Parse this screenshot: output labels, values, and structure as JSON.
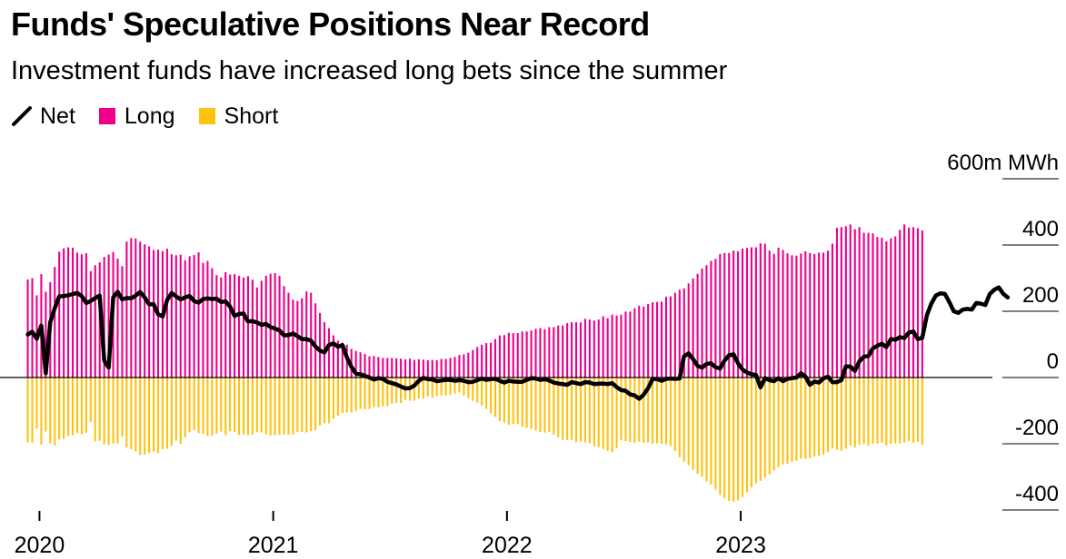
{
  "chart_data": {
    "type": "bar",
    "title": "Funds' Speculative Positions Near Record",
    "subtitle": "Investment funds have increased long bets since the summer",
    "unit_label": "600m MWh",
    "ylim": [
      -450,
      600
    ],
    "y_ticks": [
      {
        "value": 600,
        "label": "600m MWh"
      },
      {
        "value": 400,
        "label": "400"
      },
      {
        "value": 200,
        "label": "200"
      },
      {
        "value": 0,
        "label": "0"
      },
      {
        "value": -200,
        "label": "-200"
      },
      {
        "value": -400,
        "label": "-400"
      }
    ],
    "x_ticks": [
      {
        "year": 2020,
        "label": "2020"
      },
      {
        "year": 2021,
        "label": "2021"
      },
      {
        "year": 2022,
        "label": "2022"
      },
      {
        "year": 2023,
        "label": "2023"
      }
    ],
    "x_range": [
      2019.94,
      2023.96
    ],
    "legend": [
      {
        "key": "net",
        "label": "Net",
        "type": "line",
        "color": "#000000"
      },
      {
        "key": "long",
        "label": "Long",
        "type": "bar",
        "color": "#ec008c"
      },
      {
        "key": "short",
        "label": "Short",
        "type": "bar",
        "color": "#ffc20e"
      }
    ],
    "weeks_per_year": 52,
    "x_start": 2019.95,
    "series": [
      {
        "name": "Long",
        "values": [
          296,
          300,
          248,
          312,
          259,
          288,
          334,
          380,
          390,
          393,
          392,
          377,
          372,
          375,
          321,
          339,
          348,
          364,
          371,
          379,
          359,
          336,
          410,
          421,
          420,
          410,
          402,
          396,
          385,
          386,
          382,
          389,
          372,
          369,
          371,
          354,
          366,
          370,
          378,
          346,
          352,
          330,
          309,
          302,
          318,
          311,
          312,
          307,
          302,
          306,
          295,
          272,
          292,
          307,
          313,
          315,
          307,
          276,
          256,
          235,
          231,
          239,
          260,
          256,
          224,
          195,
          167,
          149,
          127,
          111,
          105,
          99,
          86,
          80,
          76,
          71,
          64,
          65,
          62,
          59,
          59,
          59,
          58,
          57,
          55,
          57,
          53,
          55,
          54,
          52,
          53,
          52,
          56,
          56,
          59,
          62,
          68,
          70,
          75,
          83,
          92,
          99,
          104,
          105,
          116,
          127,
          128,
          135,
          134,
          134,
          139,
          139,
          142,
          147,
          149,
          146,
          152,
          152,
          157,
          157,
          164,
          167,
          167,
          166,
          177,
          175,
          172,
          175,
          185,
          179,
          190,
          187,
          190,
          199,
          199,
          209,
          217,
          214,
          222,
          227,
          228,
          229,
          244,
          245,
          256,
          265,
          269,
          284,
          299,
          313,
          329,
          339,
          352,
          358,
          373,
          376,
          376,
          383,
          381,
          389,
          391,
          393,
          393,
          405,
          404,
          383,
          373,
          392,
          385,
          375,
          369,
          368,
          374,
          381,
          376,
          373,
          377,
          377,
          383,
          404,
          452,
          454,
          457,
          462,
          448,
          454,
          437,
          437,
          435,
          424,
          422,
          411,
          420,
          426,
          446,
          462,
          453,
          454,
          451,
          444
        ]
      },
      {
        "name": "Short",
        "values": [
          -196,
          -197,
          -154,
          -203,
          -163,
          -199,
          -205,
          -187,
          -186,
          -177,
          -174,
          -168,
          -171,
          -167,
          -134,
          -193,
          -191,
          -202,
          -203,
          -200,
          -199,
          -179,
          -211,
          -217,
          -223,
          -234,
          -233,
          -228,
          -224,
          -228,
          -216,
          -215,
          -206,
          -191,
          -200,
          -180,
          -165,
          -159,
          -168,
          -170,
          -176,
          -175,
          -169,
          -163,
          -174,
          -162,
          -164,
          -173,
          -172,
          -174,
          -172,
          -165,
          -166,
          -171,
          -175,
          -175,
          -173,
          -172,
          -172,
          -172,
          -164,
          -164,
          -166,
          -162,
          -160,
          -145,
          -138,
          -138,
          -124,
          -116,
          -107,
          -106,
          -105,
          -101,
          -95,
          -96,
          -95,
          -89,
          -90,
          -87,
          -87,
          -79,
          -76,
          -77,
          -67,
          -70,
          -70,
          -63,
          -64,
          -57,
          -61,
          -56,
          -54,
          -54,
          -53,
          -49,
          -45,
          -54,
          -62,
          -70,
          -76,
          -85,
          -95,
          -107,
          -119,
          -132,
          -136,
          -143,
          -141,
          -140,
          -149,
          -152,
          -156,
          -160,
          -165,
          -166,
          -164,
          -172,
          -180,
          -188,
          -189,
          -188,
          -195,
          -193,
          -196,
          -199,
          -207,
          -210,
          -216,
          -221,
          -225,
          -214,
          -190,
          -192,
          -195,
          -197,
          -194,
          -197,
          -196,
          -200,
          -199,
          -200,
          -202,
          -207,
          -222,
          -241,
          -254,
          -265,
          -279,
          -291,
          -300,
          -314,
          -323,
          -338,
          -355,
          -365,
          -373,
          -375,
          -371,
          -361,
          -347,
          -332,
          -319,
          -312,
          -302,
          -293,
          -281,
          -271,
          -262,
          -261,
          -254,
          -251,
          -245,
          -245,
          -244,
          -238,
          -237,
          -233,
          -225,
          -214,
          -218,
          -221,
          -215,
          -206,
          -211,
          -203,
          -201,
          -205,
          -200,
          -199,
          -197,
          -205,
          -200,
          -199,
          -199,
          -196,
          -192,
          -197,
          -194,
          -203
        ]
      },
      {
        "name": "Net",
        "values": [
          130,
          138,
          117,
          157,
          13,
          167,
          210,
          245,
          246,
          248,
          252,
          255,
          246,
          225,
          231,
          240,
          247,
          51,
          30,
          242,
          259,
          236,
          240,
          239,
          247,
          258,
          242,
          221,
          221,
          191,
          184,
          234,
          255,
          245,
          236,
          242,
          246,
          231,
          226,
          237,
          239,
          237,
          238,
          228,
          230,
          214,
          186,
          192,
          193,
          169,
          170,
          166,
          159,
          162,
          152,
          148,
          142,
          127,
          128,
          133,
          125,
          116,
          116,
          111,
          94,
          81,
          76,
          98,
          103,
          93,
          98,
          60,
          32,
          12,
          10,
          5,
          0,
          -6,
          -2,
          -4,
          -13,
          -17,
          -21,
          -27,
          -33,
          -32,
          -24,
          -10,
          -1,
          -5,
          -6,
          -11,
          -9,
          -7,
          -7,
          -10,
          -8,
          -10,
          -14,
          -13,
          -8,
          -3,
          -7,
          -5,
          -4,
          -10,
          -15,
          -10,
          -12,
          -13,
          -13,
          -7,
          -2,
          -3,
          -7,
          -5,
          -9,
          -15,
          -18,
          -20,
          -22,
          -14,
          -17,
          -20,
          -14,
          -15,
          -20,
          -19,
          -18,
          -20,
          -17,
          -29,
          -38,
          -40,
          -51,
          -54,
          -64,
          -52,
          -32,
          -4,
          -5,
          -10,
          -4,
          -3,
          -4,
          -3,
          64,
          73,
          56,
          35,
          30,
          41,
          43,
          31,
          27,
          51,
          67,
          70,
          43,
          24,
          15,
          10,
          8,
          -30,
          -2,
          -8,
          -11,
          -2,
          -11,
          -4,
          -2,
          0,
          13,
          3,
          -22,
          -12,
          -15,
          -3,
          3,
          -14,
          -14,
          -8,
          34,
          33,
          20,
          49,
          63,
          65,
          88,
          96,
          102,
          92,
          116,
          114,
          122,
          119,
          136,
          139,
          116,
          120,
          188,
          223,
          247,
          254,
          253,
          228,
          200,
          195,
          205,
          207,
          205,
          225,
          223,
          219,
          252,
          265,
          272,
          253,
          242
        ]
      }
    ]
  }
}
